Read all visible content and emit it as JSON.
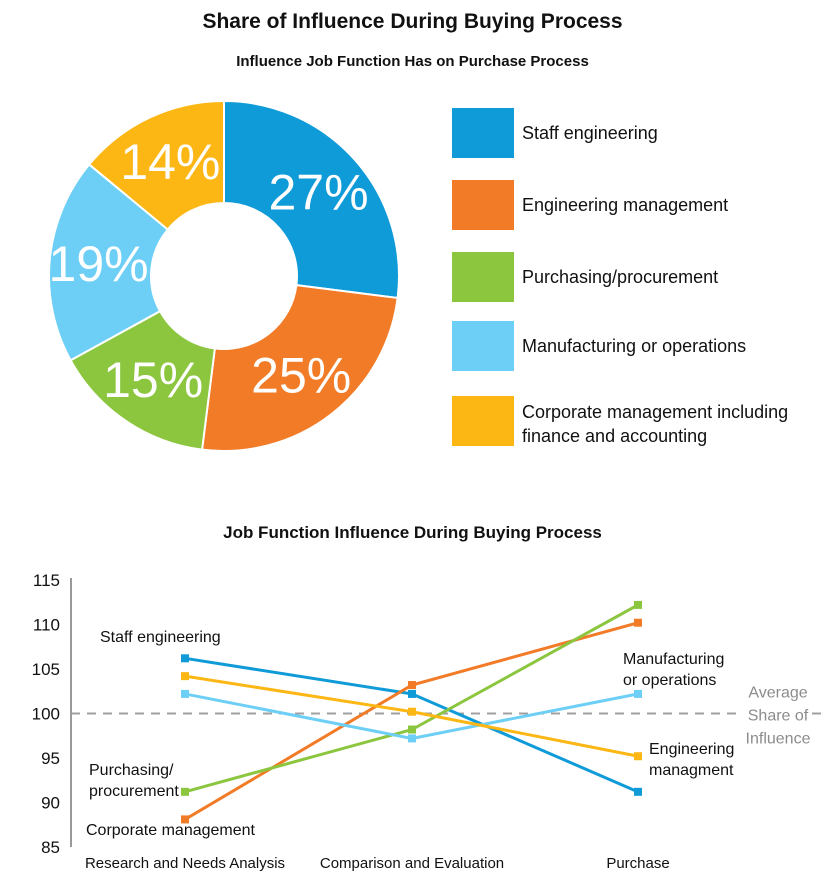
{
  "title": "Share of Influence During Buying Process",
  "pie_chart_title": "Influence Job Function Has on Purchase Process",
  "line_chart_title": "Job Function Influence During Buying Process",
  "chart_data": [
    {
      "type": "pie",
      "donut": true,
      "title": "Influence Job Function Has on Purchase Process",
      "labels": [
        "Staff engineering",
        "Engineering management",
        "Purchasing/procurement",
        "Manufacturing or operations",
        "Corporate management including finance and accounting"
      ],
      "values": [
        27,
        25,
        15,
        19,
        14
      ],
      "value_labels": [
        "27%",
        "25%",
        "15%",
        "19%",
        "14%"
      ],
      "colors": [
        "#0f9ad8",
        "#f27b27",
        "#8cc63f",
        "#6dcff6",
        "#fcb715"
      ],
      "legend_placement": "right"
    },
    {
      "type": "line",
      "title": "Job Function Influence During Buying Process",
      "categories": [
        "Research and Needs Analysis",
        "Comparison and Evaluation",
        "Purchase"
      ],
      "ylim": [
        85,
        115
      ],
      "yticks": [
        85,
        90,
        95,
        100,
        105,
        110,
        115
      ],
      "grid": false,
      "reference_line": {
        "value": 100,
        "label_lines": [
          "Average",
          "Share of",
          "Influence"
        ],
        "color": "#a0a0a0"
      },
      "series": [
        {
          "name": "Staff engineering",
          "values": [
            106.2,
            102.2,
            91.2
          ],
          "color": "#0f9ad8"
        },
        {
          "name": "Engineering management",
          "values": [
            88.1,
            103.2,
            110.2
          ],
          "color": "#f27b27"
        },
        {
          "name": "Purchasing/procurement",
          "values": [
            91.2,
            98.2,
            112.2
          ],
          "color": "#8cc63f"
        },
        {
          "name": "Manufacturing or operations",
          "values": [
            102.2,
            97.2,
            102.2
          ],
          "color": "#6dcff6"
        },
        {
          "name": "Corporate management",
          "values": [
            104.2,
            100.2,
            95.2
          ],
          "color": "#fcb715"
        }
      ],
      "annotations": [
        {
          "lines": [
            "Staff engineering"
          ],
          "series": 0
        },
        {
          "lines": [
            "Purchasing/",
            "procurement"
          ],
          "series": 2
        },
        {
          "lines": [
            "Corporate management"
          ],
          "series": 4
        },
        {
          "lines": [
            "Manufacturing",
            "or operations"
          ],
          "series": 3
        },
        {
          "lines": [
            "Engineering",
            "managment"
          ],
          "series": 1
        }
      ]
    }
  ]
}
